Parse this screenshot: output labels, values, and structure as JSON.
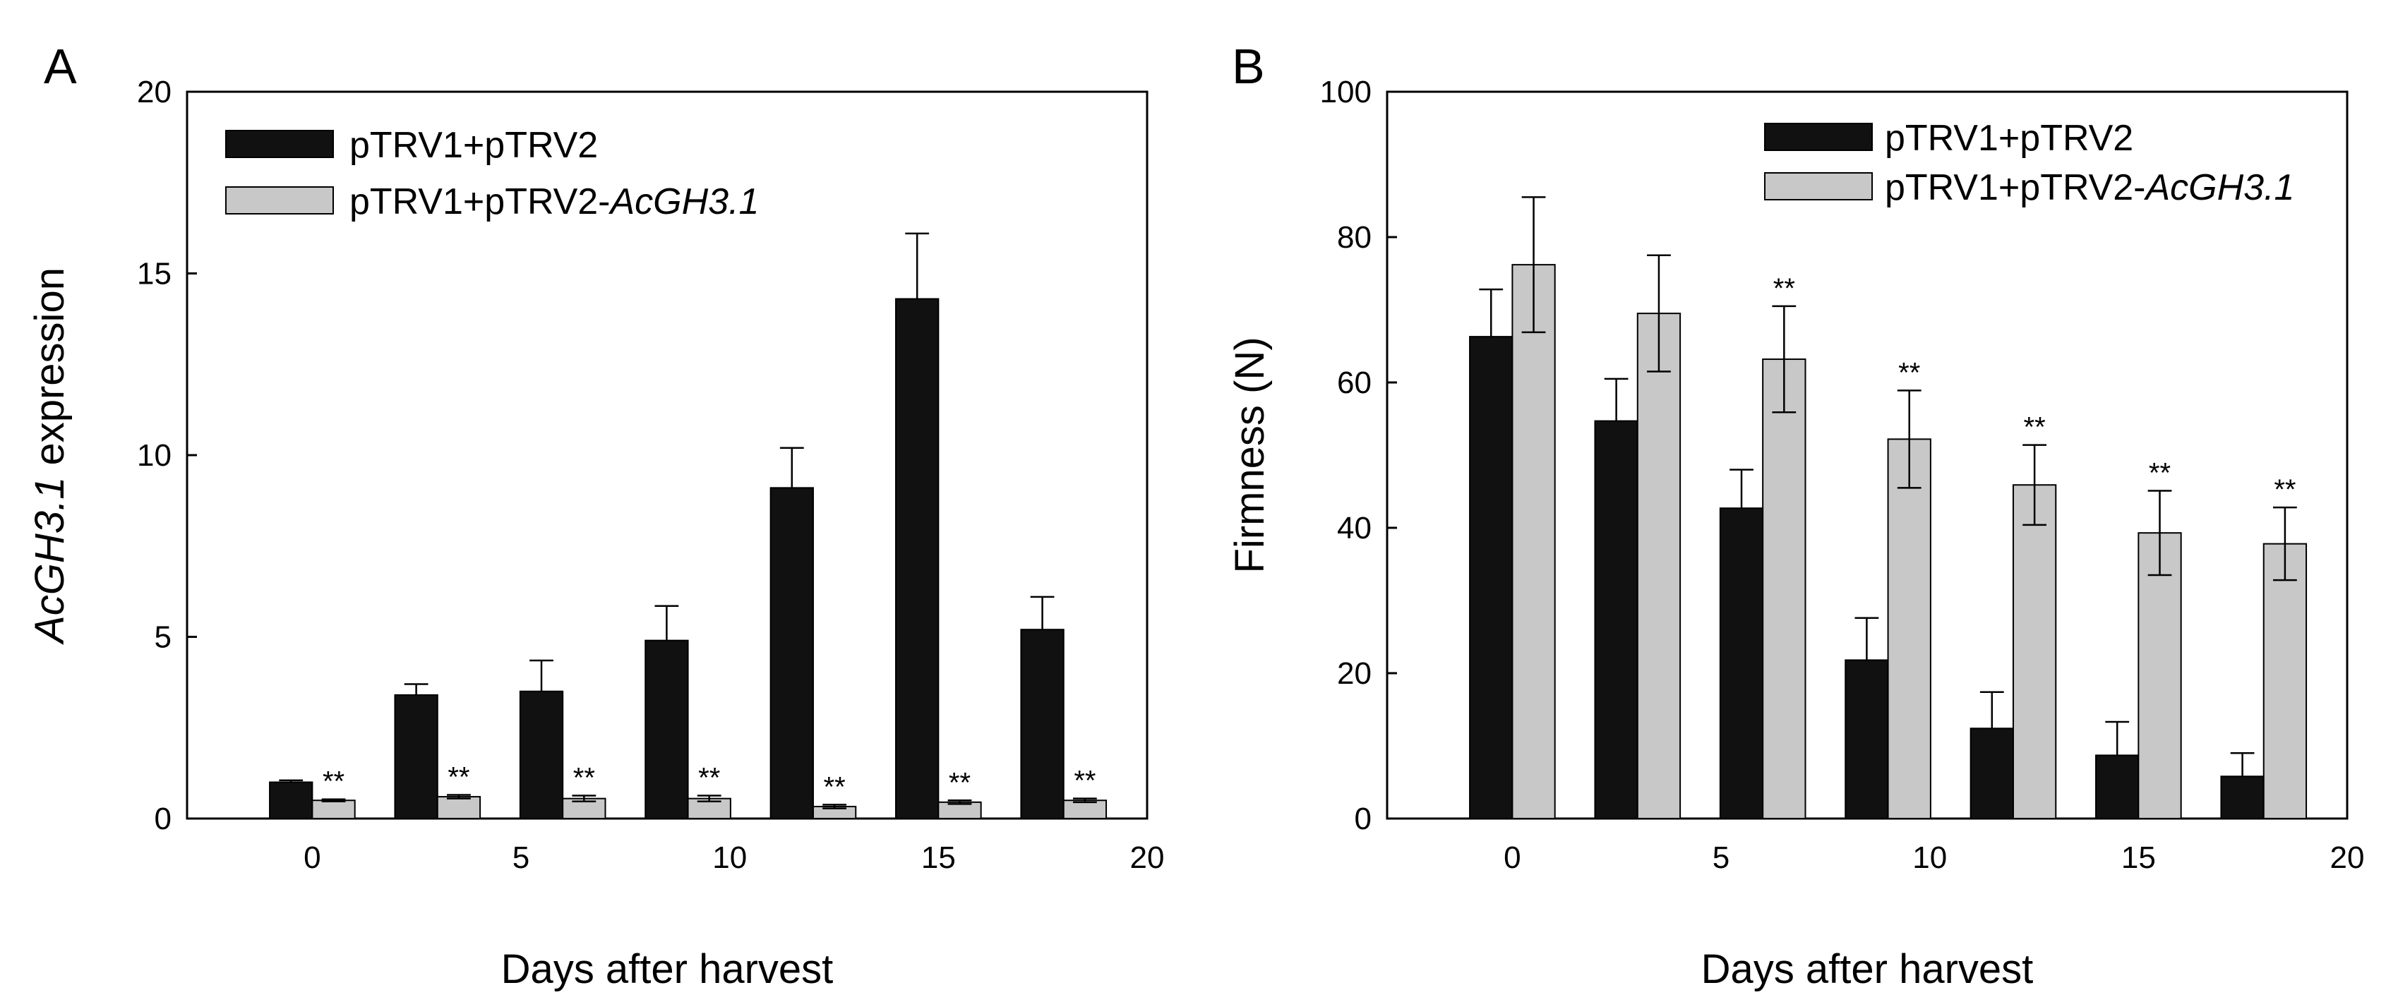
{
  "colors": {
    "series1": "#111111",
    "series2": "#c8c8c8",
    "edge": "#000000"
  },
  "chart_data": [
    {
      "type": "bar",
      "panel": "A",
      "title": "",
      "xlabel": "Days after harvest",
      "ylabel_italic": "AcGH3.1",
      "ylabel_rest": " expression",
      "ylim": [
        0,
        20
      ],
      "yticks": [
        "0",
        "5",
        "10",
        "15",
        "20"
      ],
      "xlim": [
        -3,
        20
      ],
      "xticks": [
        "0",
        "5",
        "10",
        "15",
        "20"
      ],
      "categories": [
        0,
        3,
        6,
        9,
        12,
        15,
        18
      ],
      "series": [
        {
          "name": "pTRV1+pTRV2",
          "name_plain": "pTRV1+pTRV2",
          "name_italic": "",
          "values": [
            1.0,
            3.4,
            3.5,
            4.9,
            9.1,
            14.3,
            5.2
          ],
          "errors": [
            0.05,
            0.3,
            0.85,
            0.95,
            1.1,
            1.8,
            0.9
          ]
        },
        {
          "name": "pTRV1+pTRV2-AcGH3.1",
          "name_plain": "pTRV1+pTRV2-",
          "name_italic": "AcGH3.1",
          "values": [
            0.5,
            0.6,
            0.55,
            0.55,
            0.33,
            0.45,
            0.5
          ],
          "errors": [
            0.03,
            0.05,
            0.08,
            0.08,
            0.05,
            0.05,
            0.05
          ]
        }
      ],
      "annotations": [
        "**",
        "**",
        "**",
        "**",
        "**",
        "**",
        "**"
      ],
      "legend": "top-left"
    },
    {
      "type": "bar",
      "panel": "B",
      "title": "",
      "xlabel": "Days after harvest",
      "ylabel": "Firmness (N)",
      "ylim": [
        0,
        100
      ],
      "yticks": [
        "0",
        "20",
        "40",
        "60",
        "80",
        "100"
      ],
      "xlim": [
        -3,
        20
      ],
      "xticks": [
        "0",
        "5",
        "10",
        "15",
        "20"
      ],
      "categories": [
        0,
        3,
        6,
        9,
        12,
        15,
        18
      ],
      "series": [
        {
          "name": "pTRV1+pTRV2",
          "name_plain": "pTRV1+pTRV2",
          "name_italic": "",
          "values": [
            66.3,
            54.7,
            42.7,
            21.8,
            12.4,
            8.7,
            5.8
          ],
          "errors": [
            6.5,
            5.8,
            5.3,
            5.8,
            5.0,
            4.6,
            3.2
          ]
        },
        {
          "name": "pTRV1+pTRV2-AcGH3.1",
          "name_plain": "pTRV1+pTRV2-",
          "name_italic": "AcGH3.1",
          "values": [
            76.2,
            69.5,
            63.2,
            52.2,
            45.9,
            39.3,
            37.8
          ],
          "errors": [
            9.3,
            8.0,
            7.3,
            6.7,
            5.5,
            5.8,
            5.0
          ]
        }
      ],
      "annotations": [
        "",
        "",
        "**",
        "**",
        "**",
        "**",
        "**"
      ],
      "legend": "top-right"
    }
  ]
}
